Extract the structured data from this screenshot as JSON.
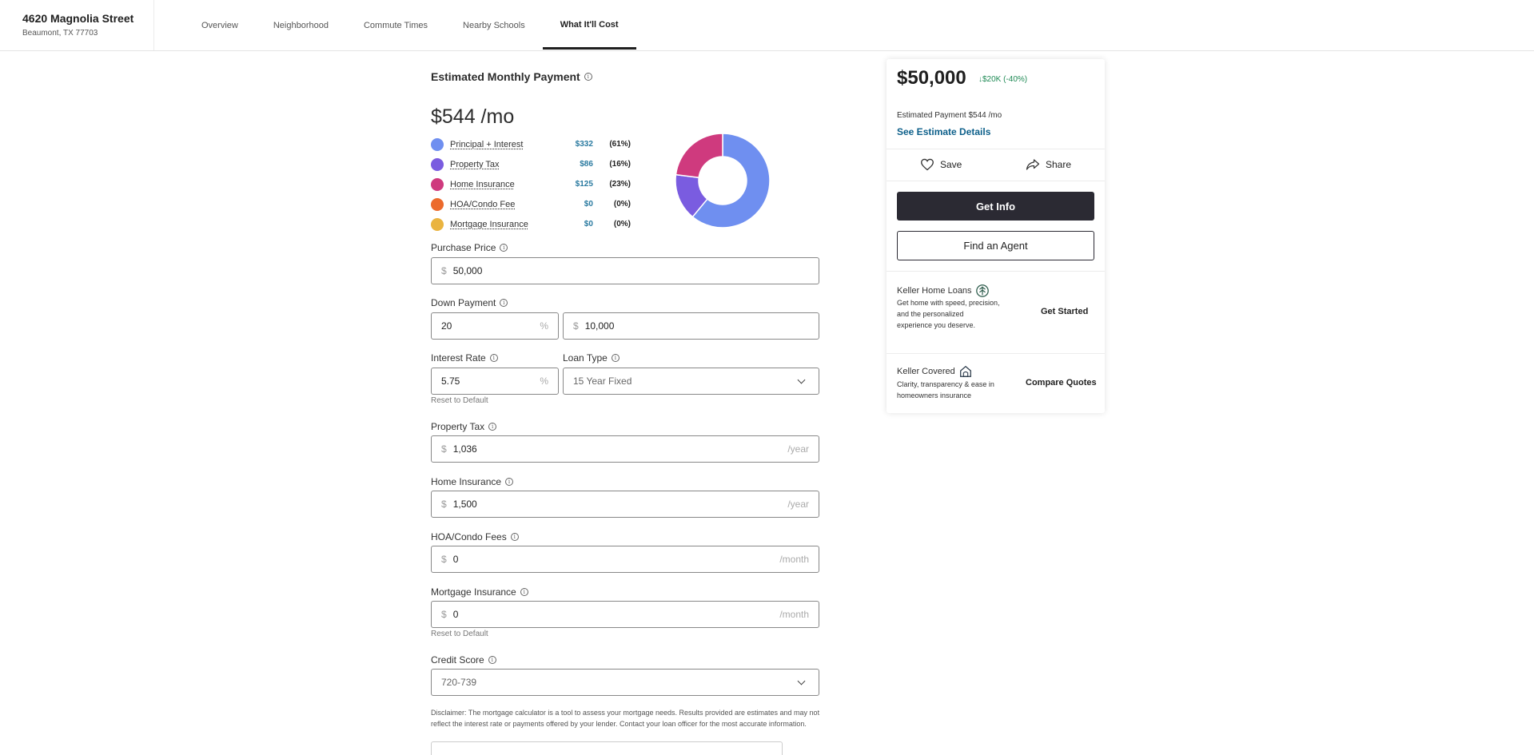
{
  "header": {
    "street": "4620 Magnolia Street",
    "city": "Beaumont, TX 77703",
    "tabs": [
      {
        "label": "Overview"
      },
      {
        "label": "Neighborhood"
      },
      {
        "label": "Commute Times"
      },
      {
        "label": "Nearby Schools"
      },
      {
        "label": "What It'll Cost",
        "active": true
      }
    ]
  },
  "payment": {
    "title": "Estimated Monthly Payment",
    "monthly": "$544 /mo",
    "breakdown": [
      {
        "label": "Principal + Interest",
        "amount": "$332",
        "pct": "(61%)",
        "color": "#6f8ff0",
        "share": 0.61
      },
      {
        "label": "Property Tax",
        "amount": "$86",
        "pct": "(16%)",
        "color": "#7a5ce0",
        "share": 0.16
      },
      {
        "label": "Home Insurance",
        "amount": "$125",
        "pct": "(23%)",
        "color": "#cf3a7e",
        "share": 0.23
      },
      {
        "label": "HOA/Condo Fee",
        "amount": "$0",
        "pct": "(0%)",
        "color": "#ec6a2c",
        "share": 0
      },
      {
        "label": "Mortgage Insurance",
        "amount": "$0",
        "pct": "(0%)",
        "color": "#eab440",
        "share": 0
      }
    ]
  },
  "form": {
    "currency": "$",
    "purchase_price": {
      "label": "Purchase Price",
      "value": "50,000"
    },
    "down_payment": {
      "label": "Down Payment",
      "percent": "20",
      "percent_suffix": "%",
      "amount": "10,000"
    },
    "interest_rate": {
      "label": "Interest Rate",
      "value": "5.75",
      "suffix": "%"
    },
    "loan_type": {
      "label": "Loan Type",
      "value": "15 Year Fixed"
    },
    "reset_label": "Reset to Default",
    "property_tax": {
      "label": "Property Tax",
      "value": "1,036",
      "suffix": "/year"
    },
    "home_insurance": {
      "label": "Home Insurance",
      "value": "1,500",
      "suffix": "/year"
    },
    "hoa": {
      "label": "HOA/Condo Fees",
      "value": "0",
      "suffix": "/month"
    },
    "mortgage_insurance": {
      "label": "Mortgage Insurance",
      "value": "0",
      "suffix": "/month"
    },
    "credit_score": {
      "label": "Credit Score",
      "value": "720-739"
    },
    "disclaimer": "Disclaimer: The mortgage calculator is a tool to assess your mortgage needs. Results provided are estimates and may not reflect the interest rate or payments offered by your lender. Contact your loan officer for the most accurate information."
  },
  "card": {
    "price": "$50,000",
    "price_change": "$20K (-40%)",
    "estimated_payment": "Estimated Payment $544 /mo",
    "see_details": "See Estimate Details",
    "save_label": "Save",
    "share_label": "Share",
    "get_info": "Get Info",
    "find_agent": "Find an Agent",
    "home_loans": {
      "title": "Keller Home Loans",
      "text": "Get home with speed, precision, and the personalized experience you deserve.",
      "link": "Get Started"
    },
    "covered": {
      "title": "Keller Covered",
      "text": "Clarity, transparency & ease in homeowners insurance",
      "link": "Compare Quotes"
    },
    "change_color": "#1f8a55"
  }
}
